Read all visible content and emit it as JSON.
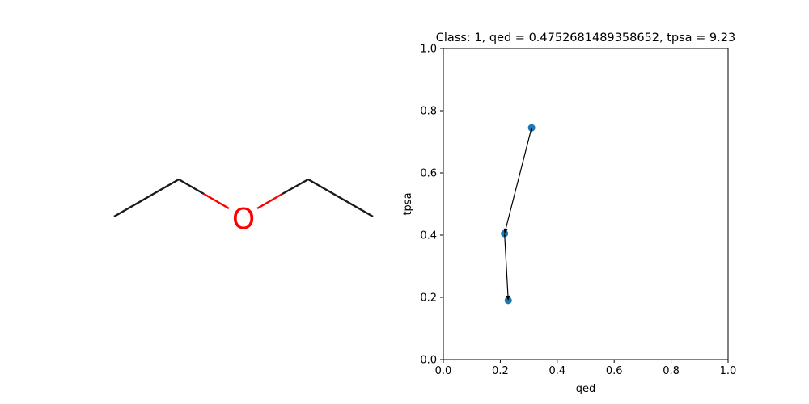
{
  "molecule": {
    "atom_label": "O",
    "bond_color": "#1a1a1a",
    "hetero_color": "#ff0000"
  },
  "chart_data": {
    "type": "scatter",
    "title": "Class: 1, qed = 0.4752681489358652, tpsa = 9.23",
    "xlabel": "qed",
    "ylabel": "tpsa",
    "xlim": [
      0.0,
      1.0
    ],
    "ylim": [
      0.0,
      1.0
    ],
    "xticks": [
      "0.0",
      "0.2",
      "0.4",
      "0.6",
      "0.8",
      "1.0"
    ],
    "yticks": [
      "0.0",
      "0.2",
      "0.4",
      "0.6",
      "0.8",
      "1.0"
    ],
    "grid": false,
    "points": [
      {
        "x": 0.31,
        "y": 0.745
      },
      {
        "x": 0.215,
        "y": 0.405
      },
      {
        "x": 0.228,
        "y": 0.19
      }
    ],
    "arrows": [
      {
        "from": 0,
        "to": 1
      },
      {
        "from": 1,
        "to": 2
      }
    ],
    "marker_color": "#1f77b4",
    "arrow_color": "#000000"
  }
}
